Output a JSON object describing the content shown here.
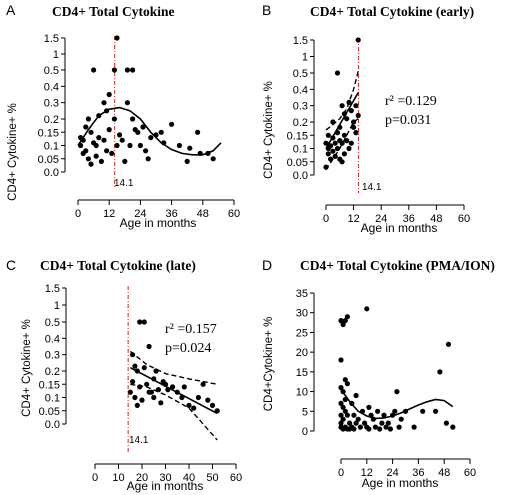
{
  "chart_data": [
    {
      "id": "A",
      "panel_letter": "A",
      "type": "scatter",
      "title": "CD4+  Total Cytokine",
      "xlabel": "Age in months",
      "ylabel": "CD4+ Cytokine+ %",
      "xlim": [
        0,
        60
      ],
      "xticks": [
        "0",
        "12",
        "24",
        "36",
        "48",
        "60"
      ],
      "yticks": [
        {
          "v": 0.0,
          "t": "0.0"
        },
        {
          "v": 0.05,
          "t": "0.05"
        },
        {
          "v": 0.1,
          "t": "0.1"
        },
        {
          "v": 0.15,
          "t": "0.15"
        },
        {
          "v": 0.2,
          "t": "0.2"
        },
        {
          "v": 0.3,
          "t": "0.3"
        },
        {
          "v": 0.4,
          "t": "0.4"
        },
        {
          "v": 0.5,
          "t": "0.5"
        },
        {
          "v": 1.0,
          "t": "1"
        },
        {
          "v": 1.5,
          "t": "1.5"
        }
      ],
      "vline": {
        "x": 14.1,
        "label": "14.1"
      },
      "fit": {
        "style": "cubic",
        "points": [
          [
            0,
            0.1
          ],
          [
            4,
            0.16
          ],
          [
            8,
            0.22
          ],
          [
            12,
            0.26
          ],
          [
            16,
            0.27
          ],
          [
            20,
            0.25
          ],
          [
            24,
            0.2
          ],
          [
            28,
            0.15
          ],
          [
            32,
            0.11
          ],
          [
            36,
            0.085
          ],
          [
            40,
            0.07
          ],
          [
            44,
            0.065
          ],
          [
            48,
            0.065
          ],
          [
            52,
            0.08
          ],
          [
            55,
            0.11
          ]
        ]
      },
      "points": [
        [
          1,
          0.13
        ],
        [
          1,
          0.1
        ],
        [
          2,
          0.07
        ],
        [
          2,
          0.12
        ],
        [
          3,
          0.17
        ],
        [
          3,
          0.08
        ],
        [
          4,
          0.2
        ],
        [
          4,
          0.05
        ],
        [
          5,
          0.15
        ],
        [
          5,
          0.03
        ],
        [
          6,
          0.11
        ],
        [
          6,
          0.5
        ],
        [
          7,
          0.06
        ],
        [
          7,
          0.1
        ],
        [
          8,
          0.22
        ],
        [
          8,
          0.13
        ],
        [
          9,
          0.04
        ],
        [
          10,
          0.3
        ],
        [
          10,
          0.12
        ],
        [
          11,
          0.25
        ],
        [
          11,
          0.08
        ],
        [
          12,
          0.16
        ],
        [
          12,
          0.35
        ],
        [
          13,
          0.07
        ],
        [
          14,
          0.2
        ],
        [
          14,
          0.5
        ],
        [
          15,
          1.5
        ],
        [
          15,
          0.1
        ],
        [
          16,
          0.14
        ],
        [
          17,
          0.12
        ],
        [
          18,
          0.04
        ],
        [
          19,
          0.3
        ],
        [
          19,
          0.5
        ],
        [
          20,
          0.1
        ],
        [
          21,
          0.2
        ],
        [
          21,
          0.5
        ],
        [
          22,
          0.16
        ],
        [
          23,
          0.15
        ],
        [
          24,
          0.1
        ],
        [
          25,
          0.17
        ],
        [
          26,
          0.08
        ],
        [
          27,
          0.05
        ],
        [
          28,
          0.13
        ],
        [
          30,
          0.14
        ],
        [
          32,
          0.15
        ],
        [
          33,
          0.11
        ],
        [
          36,
          0.18
        ],
        [
          39,
          0.1
        ],
        [
          42,
          0.04
        ],
        [
          43,
          0.09
        ],
        [
          46,
          0.15
        ],
        [
          47,
          0.07
        ],
        [
          50,
          0.07
        ],
        [
          52,
          0.05
        ]
      ]
    },
    {
      "id": "B",
      "panel_letter": "B",
      "type": "scatter",
      "title": "CD4+  Total  Cytokine (early)",
      "xlabel": "Age in months",
      "ylabel": "CD4+ Cytokine+ %",
      "xlim": [
        0,
        60
      ],
      "xticks": [
        "0",
        "12",
        "24",
        "36",
        "48",
        "60"
      ],
      "yticks": [
        {
          "v": 0.0,
          "t": "0.0"
        },
        {
          "v": 0.05,
          "t": "0.05"
        },
        {
          "v": 0.1,
          "t": "0.1"
        },
        {
          "v": 0.15,
          "t": "0.15"
        },
        {
          "v": 0.2,
          "t": "0.2"
        },
        {
          "v": 0.3,
          "t": "0.3"
        },
        {
          "v": 0.4,
          "t": "0.4"
        },
        {
          "v": 0.5,
          "t": "0.5"
        },
        {
          "v": 1.0,
          "t": "1"
        },
        {
          "v": 1.5,
          "t": "1.5"
        }
      ],
      "vline": {
        "x": 14.1,
        "label": "14.1"
      },
      "stats": [
        "r² =0.129",
        "p=0.031"
      ],
      "fit": {
        "style": "linear",
        "points": [
          [
            0,
            0.1
          ],
          [
            14,
            0.38
          ]
        ]
      },
      "ci_upper": [
        [
          0,
          0.17
        ],
        [
          3,
          0.19
        ],
        [
          6,
          0.22
        ],
        [
          9,
          0.28
        ],
        [
          12,
          0.4
        ],
        [
          14,
          0.55
        ]
      ],
      "ci_lower": [
        [
          0,
          0.02
        ],
        [
          3,
          0.06
        ],
        [
          6,
          0.1
        ],
        [
          9,
          0.15
        ],
        [
          12,
          0.2
        ],
        [
          14,
          0.22
        ]
      ],
      "points": [
        [
          0,
          0.03
        ],
        [
          0,
          0.12
        ],
        [
          1,
          0.1
        ],
        [
          1,
          0.15
        ],
        [
          1,
          0.08
        ],
        [
          2,
          0.06
        ],
        [
          2,
          0.11
        ],
        [
          3,
          0.2
        ],
        [
          3,
          0.14
        ],
        [
          3,
          0.09
        ],
        [
          4,
          0.07
        ],
        [
          4,
          0.12
        ],
        [
          5,
          0.5
        ],
        [
          5,
          0.1
        ],
        [
          5,
          0.16
        ],
        [
          6,
          0.18
        ],
        [
          6,
          0.06
        ],
        [
          6,
          0.13
        ],
        [
          7,
          0.3
        ],
        [
          7,
          0.05
        ],
        [
          7,
          0.12
        ],
        [
          8,
          0.25
        ],
        [
          8,
          0.15
        ],
        [
          8,
          0.08
        ],
        [
          9,
          0.22
        ],
        [
          9,
          0.13
        ],
        [
          10,
          0.32
        ],
        [
          10,
          0.1
        ],
        [
          11,
          0.12
        ],
        [
          11,
          0.27
        ],
        [
          12,
          0.18
        ],
        [
          12,
          0.2
        ],
        [
          13,
          0.16
        ],
        [
          13,
          0.3
        ],
        [
          14,
          1.5
        ],
        [
          14,
          0.24
        ]
      ]
    },
    {
      "id": "C",
      "panel_letter": "C",
      "type": "scatter",
      "title": "CD4+  Total Cytokine  (late)",
      "xlabel": "Age in months",
      "ylabel": "CD4+ Cytokine+ %",
      "xlim": [
        0,
        60
      ],
      "xticks": [
        "0",
        "10",
        "20",
        "30",
        "40",
        "50",
        "60"
      ],
      "yticks": [
        {
          "v": 0.0,
          "t": "0.0"
        },
        {
          "v": 0.05,
          "t": "0.05"
        },
        {
          "v": 0.1,
          "t": "0.1"
        },
        {
          "v": 0.15,
          "t": "0.15"
        },
        {
          "v": 0.2,
          "t": "0.2"
        },
        {
          "v": 0.3,
          "t": "0.3"
        },
        {
          "v": 0.4,
          "t": "0.4"
        },
        {
          "v": 0.5,
          "t": "0.5"
        },
        {
          "v": 1.0,
          "t": "1"
        },
        {
          "v": 1.5,
          "t": "1.5"
        }
      ],
      "vline": {
        "x": 14.1,
        "label": "14.1"
      },
      "stats": [
        "r² =0.157",
        "p=0.024"
      ],
      "fit": {
        "style": "linear",
        "points": [
          [
            15,
            0.22
          ],
          [
            52,
            0.04
          ]
        ]
      },
      "ci_upper": [
        [
          15,
          0.32
        ],
        [
          22,
          0.24
        ],
        [
          30,
          0.19
        ],
        [
          40,
          0.17
        ],
        [
          52,
          0.15
        ]
      ],
      "ci_lower": [
        [
          15,
          0.15
        ],
        [
          22,
          0.14
        ],
        [
          30,
          0.11
        ],
        [
          40,
          0.06
        ],
        [
          52,
          -0.06
        ]
      ],
      "points": [
        [
          15,
          0.12
        ],
        [
          16,
          0.3
        ],
        [
          16,
          0.16
        ],
        [
          17,
          0.23
        ],
        [
          17,
          0.1
        ],
        [
          18,
          0.2
        ],
        [
          18,
          0.07
        ],
        [
          19,
          0.5
        ],
        [
          19,
          0.14
        ],
        [
          20,
          0.09
        ],
        [
          21,
          0.5
        ],
        [
          21,
          0.22
        ],
        [
          22,
          0.15
        ],
        [
          23,
          0.35
        ],
        [
          23,
          0.12
        ],
        [
          24,
          0.12
        ],
        [
          25,
          0.17
        ],
        [
          25,
          0.1
        ],
        [
          26,
          0.2
        ],
        [
          27,
          0.13
        ],
        [
          28,
          0.08
        ],
        [
          29,
          0.16
        ],
        [
          30,
          0.15
        ],
        [
          31,
          0.13
        ],
        [
          33,
          0.14
        ],
        [
          35,
          0.12
        ],
        [
          37,
          0.1
        ],
        [
          38,
          0.14
        ],
        [
          40,
          0.07
        ],
        [
          42,
          0.06
        ],
        [
          44,
          0.1
        ],
        [
          46,
          0.15
        ],
        [
          48,
          0.09
        ],
        [
          50,
          0.07
        ],
        [
          52,
          0.05
        ]
      ]
    },
    {
      "id": "D",
      "panel_letter": "D",
      "type": "scatter",
      "title": "CD4+  Total Cytokine (PMA/ION)",
      "xlabel": "Age in months",
      "ylabel": "CD4+Cytokine+ %",
      "xlim": [
        0,
        60
      ],
      "ylim": [
        0,
        35
      ],
      "xticks": [
        "0",
        "12",
        "24",
        "36",
        "48",
        "60"
      ],
      "yticks": [
        {
          "v": 0,
          "t": "0"
        },
        {
          "v": 5,
          "t": "5"
        },
        {
          "v": 10,
          "t": "10"
        },
        {
          "v": 15,
          "t": "15"
        },
        {
          "v": 20,
          "t": "20"
        },
        {
          "v": 25,
          "t": "25"
        },
        {
          "v": 30,
          "t": "30"
        },
        {
          "v": 35,
          "t": "35"
        }
      ],
      "fit": {
        "style": "cubic",
        "points": [
          [
            0,
            10.5
          ],
          [
            4,
            7.5
          ],
          [
            8,
            5
          ],
          [
            12,
            3.8
          ],
          [
            16,
            3.2
          ],
          [
            20,
            3.3
          ],
          [
            24,
            3.8
          ],
          [
            28,
            4.6
          ],
          [
            32,
            5.6
          ],
          [
            36,
            6.6
          ],
          [
            40,
            7.4
          ],
          [
            44,
            8
          ],
          [
            48,
            7.7
          ],
          [
            52,
            6.2
          ]
        ]
      },
      "points": [
        [
          0,
          28
        ],
        [
          0,
          18
        ],
        [
          0,
          11
        ],
        [
          0,
          7
        ],
        [
          0,
          4
        ],
        [
          0,
          2
        ],
        [
          0,
          1
        ],
        [
          1,
          27
        ],
        [
          1,
          10
        ],
        [
          1,
          6
        ],
        [
          1,
          3
        ],
        [
          1,
          0.5
        ],
        [
          2,
          28
        ],
        [
          2,
          13
        ],
        [
          2,
          8
        ],
        [
          2,
          5
        ],
        [
          2,
          1
        ],
        [
          3,
          29
        ],
        [
          3,
          12
        ],
        [
          3,
          4
        ],
        [
          3,
          0.5
        ],
        [
          4,
          2
        ],
        [
          4,
          0.5
        ],
        [
          5,
          7
        ],
        [
          5,
          1
        ],
        [
          6,
          4
        ],
        [
          6,
          0.5
        ],
        [
          7,
          9
        ],
        [
          7,
          2
        ],
        [
          8,
          3
        ],
        [
          9,
          1
        ],
        [
          10,
          5
        ],
        [
          11,
          2
        ],
        [
          12,
          31
        ],
        [
          12,
          1
        ],
        [
          13,
          6
        ],
        [
          13,
          0.5
        ],
        [
          14,
          4
        ],
        [
          15,
          3
        ],
        [
          16,
          1
        ],
        [
          17,
          5
        ],
        [
          18,
          0.5
        ],
        [
          19,
          2
        ],
        [
          20,
          4
        ],
        [
          21,
          1
        ],
        [
          22,
          2
        ],
        [
          23,
          0.5
        ],
        [
          24,
          4
        ],
        [
          25,
          5
        ],
        [
          26,
          10
        ],
        [
          27,
          1
        ],
        [
          28,
          3
        ],
        [
          30,
          5
        ],
        [
          34,
          1
        ],
        [
          38,
          5
        ],
        [
          44,
          5
        ],
        [
          46,
          15
        ],
        [
          49,
          2
        ],
        [
          50,
          22
        ],
        [
          52,
          1
        ]
      ]
    }
  ]
}
